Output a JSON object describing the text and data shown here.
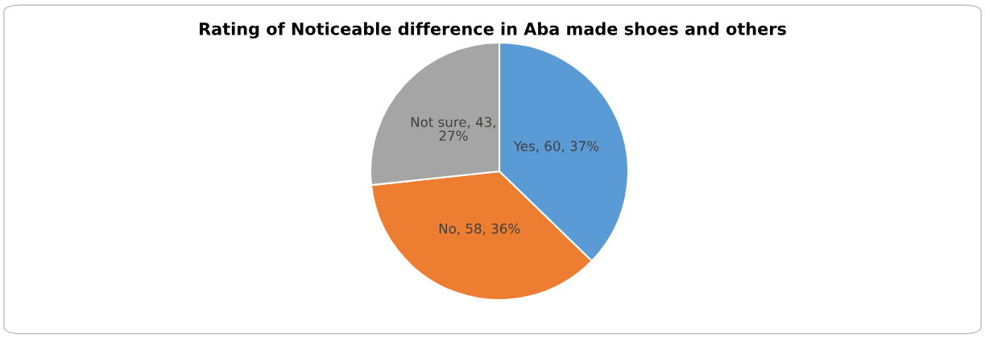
{
  "chart_data": {
    "type": "pie",
    "title": "Rating of Noticeable difference in Aba made shoes and others",
    "categories": [
      "Yes",
      "No",
      "Not sure"
    ],
    "values": [
      60,
      58,
      43
    ],
    "colors": [
      "#5b9bd5",
      "#ed7d31",
      "#a5a5a5"
    ],
    "value_labels": [
      ", 60, 37%",
      ", 58, 36%",
      ", 43, 27%"
    ],
    "legend": false
  }
}
